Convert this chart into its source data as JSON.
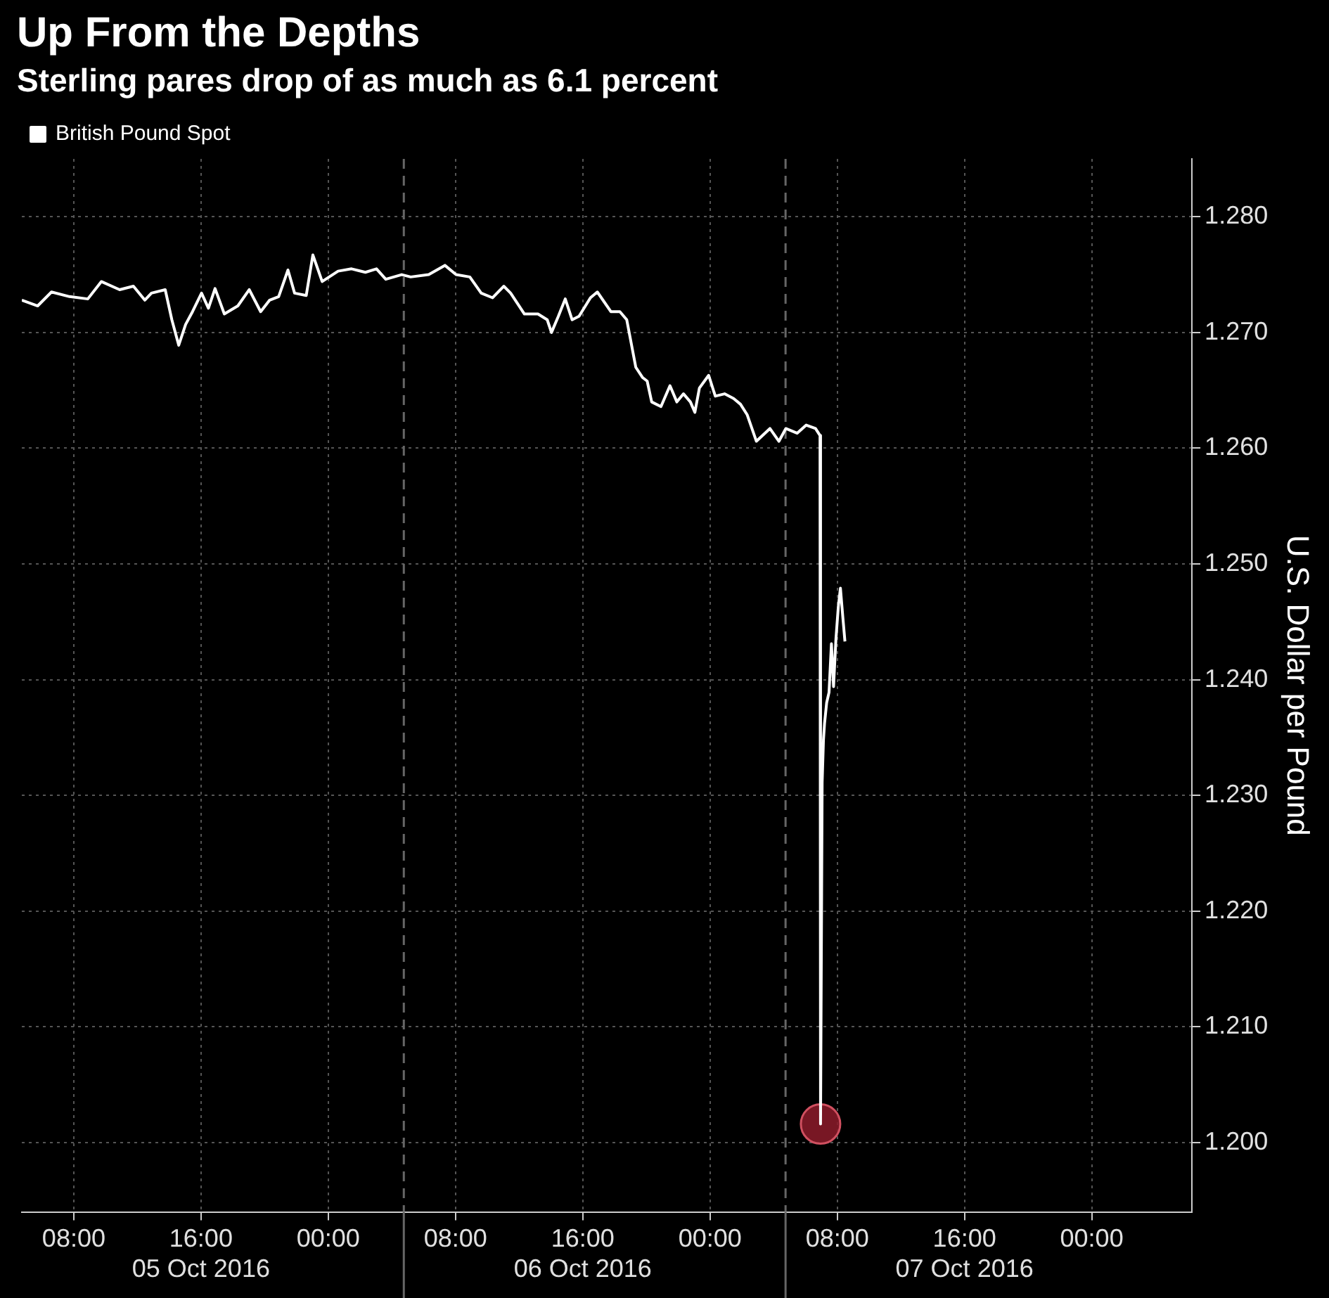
{
  "chart_data": {
    "type": "line",
    "title": "Up From the Depths",
    "subtitle": "Sterling pares drop of as much as 6.1 percent",
    "ylabel": "U.S. Dollar per Pound",
    "x": [
      "2016-10-05T04:44",
      "2016-10-05T05:44",
      "2016-10-05T06:36",
      "2016-10-05T07:44",
      "2016-10-05T08:53",
      "2016-10-05T09:44",
      "2016-10-05T10:53",
      "2016-10-05T11:45",
      "2016-10-05T12:28",
      "2016-10-05T12:53",
      "2016-10-05T13:45",
      "2016-10-05T14:10",
      "2016-10-05T14:36",
      "2016-10-05T15:02",
      "2016-10-05T15:28",
      "2016-10-05T16:02",
      "2016-10-05T16:28",
      "2016-10-05T16:53",
      "2016-10-05T17:28",
      "2016-10-05T18:19",
      "2016-10-05T19:02",
      "2016-10-05T19:45",
      "2016-10-05T20:19",
      "2016-10-05T20:53",
      "2016-10-05T21:28",
      "2016-10-05T21:53",
      "2016-10-05T22:37",
      "2016-10-05T23:02",
      "2016-10-05T23:37",
      "2016-10-06T00:37",
      "2016-10-06T01:28",
      "2016-10-06T02:20",
      "2016-10-06T03:02",
      "2016-10-06T03:37",
      "2016-10-06T04:37",
      "2016-10-06T05:11",
      "2016-10-06T06:19",
      "2016-10-06T07:20",
      "2016-10-06T08:02",
      "2016-10-06T08:54",
      "2016-10-06T09:37",
      "2016-10-06T10:20",
      "2016-10-06T11:02",
      "2016-10-06T11:28",
      "2016-10-06T12:20",
      "2016-10-06T13:11",
      "2016-10-06T13:46",
      "2016-10-06T14:02",
      "2016-10-06T14:28",
      "2016-10-06T14:54",
      "2016-10-06T15:20",
      "2016-10-06T15:46",
      "2016-10-06T16:29",
      "2016-10-06T16:55",
      "2016-10-06T17:46",
      "2016-10-06T18:20",
      "2016-10-06T18:46",
      "2016-10-06T19:20",
      "2016-10-06T19:46",
      "2016-10-06T20:03",
      "2016-10-06T20:20",
      "2016-10-06T20:55",
      "2016-10-06T21:29",
      "2016-10-06T21:55",
      "2016-10-06T22:20",
      "2016-10-06T22:46",
      "2016-10-06T23:03",
      "2016-10-06T23:20",
      "2016-10-06T23:55",
      "2016-10-07T00:20",
      "2016-10-07T00:55",
      "2016-10-07T01:29",
      "2016-10-07T01:55",
      "2016-10-07T02:20",
      "2016-10-07T02:55",
      "2016-10-07T03:46",
      "2016-10-07T04:20",
      "2016-10-07T04:46",
      "2016-10-07T05:29",
      "2016-10-07T06:03",
      "2016-10-07T06:38",
      "2016-10-07T06:55",
      "2016-10-07T06:57",
      "2016-10-07T07:03",
      "2016-10-07T07:08",
      "2016-10-07T07:12",
      "2016-10-07T07:20",
      "2016-10-07T07:29",
      "2016-10-07T07:38",
      "2016-10-07T07:46",
      "2016-10-07T07:55",
      "2016-10-07T08:04",
      "2016-10-07T08:12",
      "2016-10-07T08:21",
      "2016-10-07T08:29"
    ],
    "series": [
      {
        "name": "British Pound Spot",
        "color": "#ffffff",
        "values": [
          1.2728,
          1.2723,
          1.2735,
          1.2731,
          1.2729,
          1.2744,
          1.2737,
          1.274,
          1.2728,
          1.2734,
          1.2737,
          1.2711,
          1.2689,
          1.2707,
          1.2718,
          1.2734,
          1.2721,
          1.2738,
          1.2716,
          1.2723,
          1.2737,
          1.2718,
          1.2728,
          1.2731,
          1.2754,
          1.2734,
          1.2732,
          1.2767,
          1.2744,
          1.2753,
          1.2755,
          1.2752,
          1.2755,
          1.2746,
          1.275,
          1.2748,
          1.275,
          1.2758,
          1.275,
          1.2748,
          1.2734,
          1.273,
          1.274,
          1.2734,
          1.2716,
          1.2716,
          1.2711,
          1.27,
          1.2714,
          1.2729,
          1.2711,
          1.2714,
          1.273,
          1.2735,
          1.2718,
          1.2718,
          1.2711,
          1.267,
          1.2661,
          1.2658,
          1.264,
          1.2636,
          1.2654,
          1.264,
          1.2647,
          1.264,
          1.2631,
          1.2652,
          1.2663,
          1.2645,
          1.2647,
          1.2643,
          1.2638,
          1.2629,
          1.2606,
          1.2617,
          1.2606,
          1.2617,
          1.2613,
          1.262,
          1.2617,
          1.2611,
          1.2016,
          1.2311,
          1.2348,
          1.2362,
          1.238,
          1.2389,
          1.2431,
          1.2394,
          1.2435,
          1.2463,
          1.2479,
          1.2454,
          1.2433
        ]
      },
      {
        "type": "scatter",
        "color": "#8b1a2a",
        "marker": "circle",
        "x": [
          "2016-10-07T06:57"
        ],
        "values": [
          1.2016
        ]
      }
    ],
    "xlim": [
      "2016-10-05T04:44",
      "2016-10-08T06:18"
    ],
    "xticks": [
      {
        "value": "2016-10-05T08:00",
        "label": "08:00"
      },
      {
        "value": "2016-10-05T16:00",
        "label": "16:00\n05 Oct 2016"
      },
      {
        "value": "2016-10-06T00:00",
        "label": "00:00"
      },
      {
        "value": "2016-10-06T08:00",
        "label": "08:00"
      },
      {
        "value": "2016-10-06T16:00",
        "label": "16:00\n06 Oct 2016"
      },
      {
        "value": "2016-10-07T00:00",
        "label": "00:00"
      },
      {
        "value": "2016-10-07T08:00",
        "label": "08:00"
      },
      {
        "value": "2016-10-07T16:00",
        "label": "16:00\n07 Oct 2016"
      },
      {
        "value": "2016-10-08T00:00",
        "label": "00:00"
      }
    ],
    "ylim": [
      1.194,
      1.285
    ],
    "yticks": [
      {
        "value": 1.2,
        "label": "1.200"
      },
      {
        "value": 1.21,
        "label": "1.210"
      },
      {
        "value": 1.22,
        "label": "1.220"
      },
      {
        "value": 1.23,
        "label": "1.230"
      },
      {
        "value": 1.24,
        "label": "1.240"
      },
      {
        "value": 1.25,
        "label": "1.250"
      },
      {
        "value": 1.26,
        "label": "1.260"
      },
      {
        "value": 1.27,
        "label": "1.270"
      },
      {
        "value": 1.28,
        "label": "1.280"
      }
    ],
    "ref_lines": [
      {
        "axis": "x",
        "value": "2016-10-06T04:45",
        "color": "#666666",
        "line_style": "dashed"
      },
      {
        "axis": "x",
        "value": "2016-10-07T04:45",
        "color": "#666666",
        "line_style": "dashed"
      }
    ],
    "grid": true,
    "legend": "top left"
  }
}
